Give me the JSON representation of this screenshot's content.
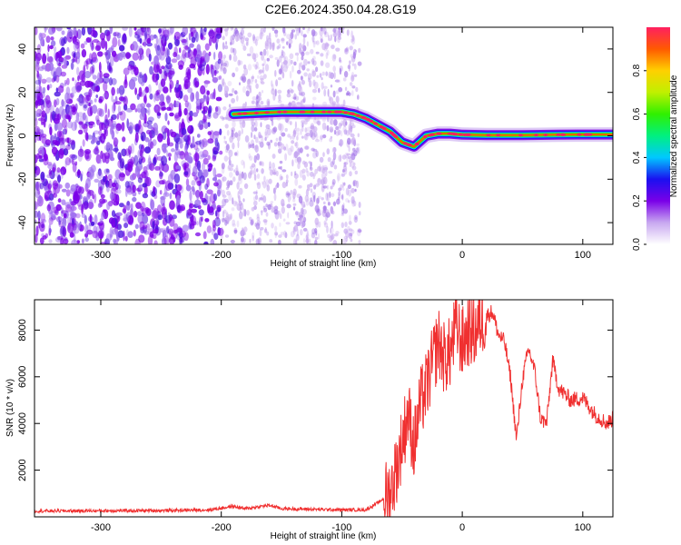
{
  "title": "C2E6.2024.350.04.28.G19",
  "chart_data": [
    {
      "type": "heatmap",
      "xlabel": "Height of straight line (km)",
      "ylabel": "Frequency (Hz)",
      "xlim": [
        -355,
        125
      ],
      "ylim": [
        -50,
        50
      ],
      "xticks": [
        -300,
        -200,
        -100,
        0,
        100
      ],
      "yticks": [
        -40,
        -20,
        0,
        20,
        40
      ],
      "colorbar": {
        "label": "Normalized spectral amplitude",
        "range": [
          0,
          1
        ],
        "ticks": [
          0.0,
          0.2,
          0.4,
          0.6,
          0.8
        ]
      },
      "noise_region_x": [
        -355,
        -85
      ],
      "signal_trace": {
        "x": [
          -190,
          -170,
          -150,
          -130,
          -110,
          -100,
          -90,
          -80,
          -70,
          -60,
          -50,
          -40,
          -30,
          -20,
          -10,
          0,
          20,
          50,
          80,
          100,
          125
        ],
        "y": [
          10,
          10.5,
          11,
          11,
          11,
          11,
          10,
          8,
          5,
          2,
          -3,
          -5,
          0,
          1,
          1,
          0.5,
          0.3,
          0.3,
          0.5,
          0.6,
          0.6
        ]
      }
    },
    {
      "type": "line",
      "xlabel": "Height of straight line (km)",
      "ylabel": "SNR (10 * v/v)",
      "xlim": [
        -355,
        125
      ],
      "ylim": [
        0,
        9300
      ],
      "xticks": [
        -300,
        -200,
        -100,
        0,
        100
      ],
      "yticks": [
        2000,
        4000,
        6000,
        8000
      ],
      "color": "#f03030",
      "series": [
        {
          "x": [
            -355,
            -300,
            -250,
            -210,
            -190,
            -180,
            -160,
            -150,
            -130,
            -100,
            -80,
            -70,
            -60,
            -55,
            -50,
            -45,
            -40,
            -35,
            -30,
            -25,
            -20,
            -15,
            -10,
            -5,
            0,
            5,
            10,
            15,
            20,
            25,
            30,
            35,
            40,
            45,
            50,
            55,
            60,
            65,
            70,
            75,
            80,
            90,
            100,
            110,
            120,
            125
          ],
          "y": [
            250,
            260,
            270,
            300,
            450,
            350,
            500,
            350,
            330,
            300,
            300,
            600,
            1000,
            2000,
            3200,
            4500,
            3000,
            4800,
            5500,
            6500,
            7500,
            6800,
            7000,
            8200,
            7400,
            8000,
            7900,
            8400,
            8600,
            8800,
            7800,
            7500,
            6000,
            3300,
            5900,
            7200,
            6300,
            4200,
            4000,
            6700,
            5500,
            5000,
            5100,
            4400,
            4000,
            4200
          ]
        }
      ]
    }
  ]
}
